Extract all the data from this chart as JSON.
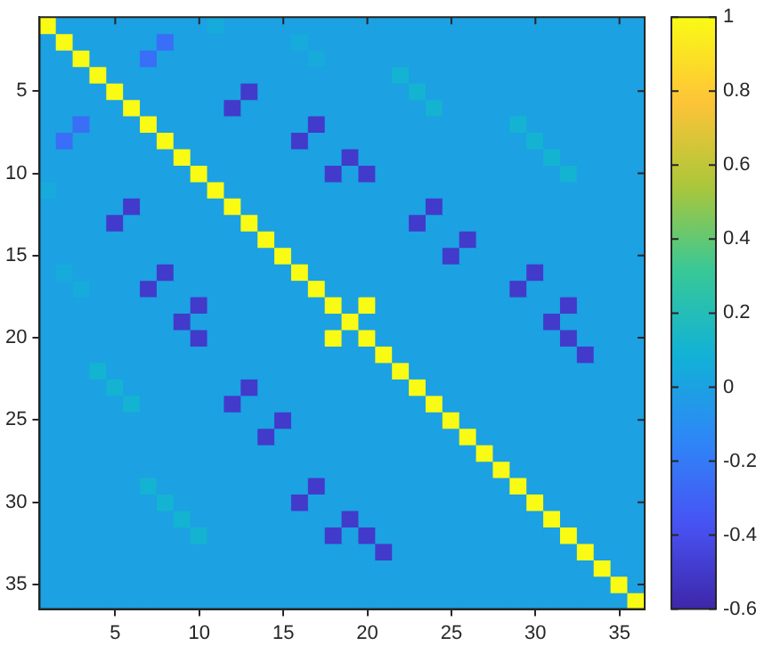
{
  "chart_data": {
    "type": "heatmap",
    "categories": [
      null,
      null,
      null,
      null,
      "5",
      null,
      null,
      null,
      null,
      "10",
      null,
      null,
      null,
      null,
      "15",
      null,
      null,
      null,
      null,
      "20",
      null,
      null,
      null,
      null,
      "25",
      null,
      null,
      null,
      null,
      "30",
      null,
      null,
      null,
      null,
      "35",
      null
    ],
    "y_categories": [
      null,
      null,
      null,
      null,
      "5",
      null,
      null,
      null,
      null,
      "10",
      null,
      null,
      null,
      null,
      "15",
      null,
      null,
      null,
      null,
      "20",
      null,
      null,
      null,
      null,
      "25",
      null,
      null,
      null,
      null,
      "30",
      null,
      null,
      null,
      null,
      "35",
      null
    ],
    "clim": [
      -0.6,
      1
    ],
    "cticks": [
      -0.6,
      -0.4,
      -0.2,
      0,
      0.2,
      0.4,
      0.6,
      0.8,
      1
    ],
    "cells": [
      [
        1,
        0,
        0,
        0,
        0,
        0,
        0,
        0,
        0,
        0,
        0.05,
        0,
        0,
        0,
        0,
        0,
        0,
        0,
        0,
        0,
        0,
        0,
        0,
        0,
        0,
        0,
        0,
        0,
        0,
        0,
        0,
        0,
        0,
        0,
        0,
        0
      ],
      [
        0,
        1,
        0,
        0,
        0,
        0,
        0,
        -0.25,
        0,
        0,
        0,
        0,
        0,
        0,
        0,
        0.05,
        0,
        0,
        0,
        0,
        0,
        0,
        0,
        0,
        0,
        0,
        0,
        0,
        0,
        0,
        0,
        0,
        0,
        0,
        0,
        0
      ],
      [
        0,
        0,
        1,
        0,
        0,
        0,
        -0.25,
        0,
        0,
        0,
        0,
        0,
        0,
        0,
        0,
        0,
        0.05,
        0,
        0,
        0,
        0,
        0,
        0,
        0,
        0,
        0,
        0,
        0,
        0,
        0,
        0,
        0,
        0,
        0,
        0,
        0
      ],
      [
        0,
        0,
        0,
        1,
        0,
        0,
        0,
        0,
        0,
        0,
        0,
        0,
        0,
        0,
        0,
        0,
        0,
        0,
        0,
        0,
        0,
        0.1,
        0,
        0,
        0,
        0,
        0,
        0,
        0,
        0,
        0,
        0,
        0,
        0,
        0,
        0
      ],
      [
        0,
        0,
        0,
        0,
        1,
        0,
        0,
        0,
        0,
        0,
        0,
        0,
        -0.5,
        0,
        0,
        0,
        0,
        0,
        0,
        0,
        0,
        0,
        0.1,
        0,
        0,
        0,
        0,
        0,
        0,
        0,
        0,
        0,
        0,
        0,
        0,
        0
      ],
      [
        0,
        0,
        0,
        0,
        0,
        1,
        0,
        0,
        0,
        0,
        0,
        -0.5,
        0,
        0,
        0,
        0,
        0,
        0,
        0,
        0,
        0,
        0,
        0,
        0.1,
        0,
        0,
        0,
        0,
        0,
        0,
        0,
        0,
        0,
        0,
        0,
        0
      ],
      [
        0,
        0,
        -0.25,
        0,
        0,
        0,
        1,
        0,
        0,
        0,
        0,
        0,
        0,
        0,
        0,
        0,
        -0.5,
        0,
        0,
        0,
        0,
        0,
        0,
        0,
        0,
        0,
        0,
        0,
        0.1,
        0,
        0,
        0,
        0,
        0,
        0,
        0
      ],
      [
        0,
        -0.25,
        0,
        0,
        0,
        0,
        0,
        1,
        0,
        0,
        0,
        0,
        0,
        0,
        0,
        -0.5,
        0,
        0,
        0,
        0,
        0,
        0,
        0,
        0,
        0,
        0,
        0,
        0,
        0,
        0.1,
        0,
        0,
        0,
        0,
        0,
        0
      ],
      [
        0,
        0,
        0,
        0,
        0,
        0,
        0,
        0,
        1,
        0,
        0,
        0,
        0,
        0,
        0,
        0,
        0,
        0,
        -0.5,
        0,
        0,
        0,
        0,
        0,
        0,
        0,
        0,
        0,
        0,
        0,
        0.1,
        0,
        0,
        0,
        0,
        0
      ],
      [
        0,
        0,
        0,
        0,
        0,
        0,
        0,
        0,
        0,
        1,
        0,
        0,
        0,
        0,
        0,
        0,
        0,
        -0.5,
        0,
        -0.5,
        0,
        0,
        0,
        0,
        0,
        0,
        0,
        0,
        0,
        0,
        0,
        0.1,
        0,
        0,
        0,
        0
      ],
      [
        0.05,
        0,
        0,
        0,
        0,
        0,
        0,
        0,
        0,
        0,
        1,
        0,
        0,
        0,
        0,
        0,
        0,
        0,
        0,
        0,
        0,
        0,
        0,
        0,
        0,
        0,
        0,
        0,
        0,
        0,
        0,
        0,
        0,
        0,
        0,
        0
      ],
      [
        0,
        0,
        0,
        0,
        0,
        -0.5,
        0,
        0,
        0,
        0,
        0,
        1,
        0,
        0,
        0,
        0,
        0,
        0,
        0,
        0,
        0,
        0,
        0,
        -0.5,
        0,
        0,
        0,
        0,
        0,
        0,
        0,
        0,
        0,
        0,
        0,
        0
      ],
      [
        0,
        0,
        0,
        0,
        -0.5,
        0,
        0,
        0,
        0,
        0,
        0,
        0,
        1,
        0,
        0,
        0,
        0,
        0,
        0,
        0,
        0,
        0,
        -0.5,
        0,
        0,
        0,
        0,
        0,
        0,
        0,
        0,
        0,
        0,
        0,
        0,
        0
      ],
      [
        0,
        0,
        0,
        0,
        0,
        0,
        0,
        0,
        0,
        0,
        0,
        0,
        0,
        1,
        0,
        0,
        0,
        0,
        0,
        0,
        0,
        0,
        0,
        0,
        0,
        -0.5,
        0,
        0,
        0,
        0,
        0,
        0,
        0,
        0,
        0,
        0
      ],
      [
        0,
        0,
        0,
        0,
        0,
        0,
        0,
        0,
        0,
        0,
        0,
        0,
        0,
        0,
        1,
        0,
        0,
        0,
        0,
        0,
        0,
        0,
        0,
        0,
        -0.5,
        0,
        0,
        0,
        0,
        0,
        0,
        0,
        0,
        0,
        0,
        0
      ],
      [
        0,
        0.05,
        0,
        0,
        0,
        0,
        0,
        -0.5,
        0,
        0,
        0,
        0,
        0,
        0,
        0,
        1,
        0,
        0,
        0,
        0,
        0,
        0,
        0,
        0,
        0,
        0,
        0,
        0,
        0,
        -0.5,
        0,
        0,
        0,
        0,
        0,
        0
      ],
      [
        0,
        0,
        0.05,
        0,
        0,
        0,
        -0.5,
        0,
        0,
        0,
        0,
        0,
        0,
        0,
        0,
        0,
        1,
        0,
        0,
        0,
        0,
        0,
        0,
        0,
        0,
        0,
        0,
        0,
        -0.5,
        0,
        0,
        0,
        0,
        0,
        0,
        0
      ],
      [
        0,
        0,
        0,
        0,
        0,
        0,
        0,
        0,
        0,
        -0.5,
        0,
        0,
        0,
        0,
        0,
        0,
        0,
        1,
        0,
        1,
        0,
        0,
        0,
        0,
        0,
        0,
        0,
        0,
        0,
        0,
        0,
        -0.5,
        0,
        0,
        0,
        0
      ],
      [
        0,
        0,
        0,
        0,
        0,
        0,
        0,
        0,
        -0.5,
        0,
        0,
        0,
        0,
        0,
        0,
        0,
        0,
        0,
        1,
        0,
        0,
        0,
        0,
        0,
        0,
        0,
        0,
        0,
        0,
        0,
        -0.5,
        0,
        0,
        0,
        0,
        0
      ],
      [
        0,
        0,
        0,
        0,
        0,
        0,
        0,
        0,
        0,
        -0.5,
        0,
        0,
        0,
        0,
        0,
        0,
        0,
        1,
        0,
        1,
        0,
        0,
        0,
        0,
        0,
        0,
        0,
        0,
        0,
        0,
        0,
        -0.5,
        0,
        0,
        0,
        0
      ],
      [
        0,
        0,
        0,
        0,
        0,
        0,
        0,
        0,
        0,
        0,
        0,
        0,
        0,
        0,
        0,
        0,
        0,
        0,
        0,
        0,
        1,
        0,
        0,
        0,
        0,
        0,
        0,
        0,
        0,
        0,
        0,
        0,
        -0.5,
        0,
        0,
        0
      ],
      [
        0,
        0,
        0,
        0.1,
        0,
        0,
        0,
        0,
        0,
        0,
        0,
        0,
        0,
        0,
        0,
        0,
        0,
        0,
        0,
        0,
        0,
        1,
        0,
        0,
        0,
        0,
        0,
        0,
        0,
        0,
        0,
        0,
        0,
        0,
        0,
        0
      ],
      [
        0,
        0,
        0,
        0,
        0.1,
        0,
        0,
        0,
        0,
        0,
        0,
        0,
        -0.5,
        0,
        0,
        0,
        0,
        0,
        0,
        0,
        0,
        0,
        1,
        0,
        0,
        0,
        0,
        0,
        0,
        0,
        0,
        0,
        0,
        0,
        0,
        0
      ],
      [
        0,
        0,
        0,
        0,
        0,
        0.1,
        0,
        0,
        0,
        0,
        0,
        -0.5,
        0,
        0,
        0,
        0,
        0,
        0,
        0,
        0,
        0,
        0,
        0,
        1,
        0,
        0,
        0,
        0,
        0,
        0,
        0,
        0,
        0,
        0,
        0,
        0
      ],
      [
        0,
        0,
        0,
        0,
        0,
        0,
        0,
        0,
        0,
        0,
        0,
        0,
        0,
        0,
        -0.5,
        0,
        0,
        0,
        0,
        0,
        0,
        0,
        0,
        0,
        1,
        0,
        0,
        0,
        0,
        0,
        0,
        0,
        0,
        0,
        0,
        0
      ],
      [
        0,
        0,
        0,
        0,
        0,
        0,
        0,
        0,
        0,
        0,
        0,
        0,
        0,
        -0.5,
        0,
        0,
        0,
        0,
        0,
        0,
        0,
        0,
        0,
        0,
        0,
        1,
        0,
        0,
        0,
        0,
        0,
        0,
        0,
        0,
        0,
        0
      ],
      [
        0,
        0,
        0,
        0,
        0,
        0,
        0,
        0,
        0,
        0,
        0,
        0,
        0,
        0,
        0,
        0,
        0,
        0,
        0,
        0,
        0,
        0,
        0,
        0,
        0,
        0,
        1,
        0,
        0,
        0,
        0,
        0,
        0,
        0,
        0,
        0
      ],
      [
        0,
        0,
        0,
        0,
        0,
        0,
        0,
        0,
        0,
        0,
        0,
        0,
        0,
        0,
        0,
        0,
        0,
        0,
        0,
        0,
        0,
        0,
        0,
        0,
        0,
        0,
        0,
        1,
        0,
        0,
        0,
        0,
        0,
        0,
        0,
        0
      ],
      [
        0,
        0,
        0,
        0,
        0,
        0,
        0.1,
        0,
        0,
        0,
        0,
        0,
        0,
        0,
        0,
        0,
        -0.5,
        0,
        0,
        0,
        0,
        0,
        0,
        0,
        0,
        0,
        0,
        0,
        1,
        0,
        0,
        0,
        0,
        0,
        0,
        0
      ],
      [
        0,
        0,
        0,
        0,
        0,
        0,
        0,
        0.1,
        0,
        0,
        0,
        0,
        0,
        0,
        0,
        -0.5,
        0,
        0,
        0,
        0,
        0,
        0,
        0,
        0,
        0,
        0,
        0,
        0,
        0,
        1,
        0,
        0,
        0,
        0,
        0,
        0
      ],
      [
        0,
        0,
        0,
        0,
        0,
        0,
        0,
        0,
        0.1,
        0,
        0,
        0,
        0,
        0,
        0,
        0,
        0,
        0,
        -0.5,
        0,
        0,
        0,
        0,
        0,
        0,
        0,
        0,
        0,
        0,
        0,
        1,
        0,
        0,
        0,
        0,
        0
      ],
      [
        0,
        0,
        0,
        0,
        0,
        0,
        0,
        0,
        0,
        0.1,
        0,
        0,
        0,
        0,
        0,
        0,
        0,
        -0.5,
        0,
        -0.5,
        0,
        0,
        0,
        0,
        0,
        0,
        0,
        0,
        0,
        0,
        0,
        1,
        0,
        0,
        0,
        0
      ],
      [
        0,
        0,
        0,
        0,
        0,
        0,
        0,
        0,
        0,
        0,
        0,
        0,
        0,
        0,
        0,
        0,
        0,
        0,
        0,
        0,
        -0.5,
        0,
        0,
        0,
        0,
        0,
        0,
        0,
        0,
        0,
        0,
        0,
        1,
        0,
        0,
        0
      ],
      [
        0,
        0,
        0,
        0,
        0,
        0,
        0,
        0,
        0,
        0,
        0,
        0,
        0,
        0,
        0,
        0,
        0,
        0,
        0,
        0,
        0,
        0,
        0,
        0,
        0,
        0,
        0,
        0,
        0,
        0,
        0,
        0,
        0,
        1,
        0,
        0
      ],
      [
        0,
        0,
        0,
        0,
        0,
        0,
        0,
        0,
        0,
        0,
        0,
        0,
        0,
        0,
        0,
        0,
        0,
        0,
        0,
        0,
        0,
        0,
        0,
        0,
        0,
        0,
        0,
        0,
        0,
        0,
        0,
        0,
        0,
        0,
        1,
        0
      ],
      [
        0,
        0,
        0,
        0,
        0,
        0,
        0,
        0,
        0,
        0,
        0,
        0,
        0,
        0,
        0,
        0,
        0,
        0,
        0,
        0,
        0,
        0,
        0,
        0,
        0,
        0,
        0,
        0,
        0,
        0,
        0,
        0,
        0,
        0,
        0,
        1
      ]
    ]
  }
}
